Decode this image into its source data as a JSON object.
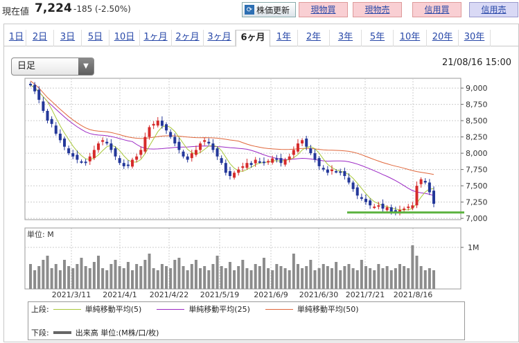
{
  "price": {
    "label": "現在値",
    "value": "7,224",
    "change": "-185 (-2.50%)"
  },
  "toolbar": {
    "refresh": "株価更新",
    "buttons": [
      "現物買",
      "現物売",
      "信用買",
      "信用売"
    ]
  },
  "periods": [
    "1日",
    "2日",
    "3日",
    "5日",
    "10日",
    "1ヶ月",
    "2ヶ月",
    "3ヶ月",
    "6ヶ月",
    "1年",
    "2年",
    "3年",
    "5年",
    "10年",
    "20年",
    "30年"
  ],
  "active_period": "6ヶ月",
  "interval_select": "日足",
  "datetime": "21/08/16 15:00",
  "chart_data": {
    "type": "candlestick",
    "y_ticks": [
      "9,000",
      "8,750",
      "8,500",
      "8,250",
      "8,000",
      "7,750",
      "7,500",
      "7,250",
      "7,000"
    ],
    "ylim": [
      6980,
      9150
    ],
    "x_labels": [
      "2021/3/11",
      "2021/4/1",
      "2021/4/22",
      "2021/5/19",
      "2021/6/9",
      "2021/6/30",
      "2021/7/21",
      "2021/8/16"
    ],
    "support_line": 7090,
    "close_series": [
      9050,
      8950,
      8820,
      8650,
      8500,
      8450,
      8300,
      8200,
      8100,
      8000,
      7950,
      7900,
      7870,
      7850,
      7950,
      8050,
      8150,
      8200,
      8150,
      8050,
      7950,
      7850,
      7800,
      7820,
      7900,
      7950,
      8050,
      8250,
      8400,
      8450,
      8500,
      8420,
      8350,
      8250,
      8150,
      8050,
      7950,
      7900,
      8000,
      8050,
      8150,
      8200,
      8150,
      8050,
      7950,
      7850,
      7700,
      7650,
      7700,
      7750,
      7800,
      7850,
      7820,
      7900,
      7870,
      7850,
      7880,
      7920,
      7900,
      7850,
      7900,
      7950,
      8050,
      8150,
      8200,
      8100,
      8000,
      7900,
      7800,
      7750,
      7700,
      7750,
      7720,
      7700,
      7650,
      7550,
      7450,
      7350,
      7300,
      7250,
      7200,
      7180,
      7200,
      7150,
      7170,
      7100,
      7100,
      7130,
      7150,
      7180,
      7200,
      7500,
      7600,
      7550,
      7400,
      7224
    ],
    "volume_unit": "単位: M",
    "volume_tick": "1M",
    "volume": [
      0.6,
      0.45,
      0.55,
      0.7,
      0.8,
      0.5,
      0.6,
      0.45,
      0.7,
      0.55,
      0.5,
      0.6,
      0.75,
      0.55,
      0.5,
      0.65,
      0.8,
      0.5,
      0.45,
      0.6,
      0.7,
      0.55,
      0.5,
      0.65,
      0.45,
      0.6,
      0.55,
      0.7,
      0.85,
      0.5,
      0.45,
      0.6,
      0.55,
      0.5,
      0.7,
      0.75,
      0.55,
      0.45,
      0.6,
      0.7,
      0.5,
      0.55,
      0.45,
      0.6,
      0.8,
      0.55,
      0.5,
      0.65,
      0.45,
      0.55,
      0.7,
      0.5,
      0.45,
      0.6,
      0.55,
      0.75,
      0.5,
      0.45,
      0.6,
      0.55,
      0.5,
      0.45,
      0.85,
      0.6,
      0.5,
      0.55,
      0.7,
      0.45,
      0.5,
      0.6,
      0.55,
      0.5,
      0.65,
      0.45,
      0.55,
      0.6,
      0.5,
      0.45,
      0.7,
      0.55,
      0.5,
      0.45,
      0.6,
      0.5,
      0.55,
      0.45,
      0.5,
      0.6,
      0.55,
      0.5,
      1.05,
      0.8,
      0.55,
      0.45,
      0.5,
      0.45
    ],
    "legend": {
      "upper_label": "上段:",
      "lower_label": "下段:",
      "ma5": "単純移動平均(5)",
      "ma25": "単純移動平均(25)",
      "ma50": "単純移動平均(50)",
      "volume": "出来高 単位:(M株/口/枚)"
    },
    "colors": {
      "up": "#d62b2b",
      "down": "#24389a",
      "ma5": "#a8c83a",
      "ma25": "#9b27c4",
      "ma50": "#e0663a",
      "support": "#5db341",
      "volume": "#8c8c8c"
    }
  }
}
